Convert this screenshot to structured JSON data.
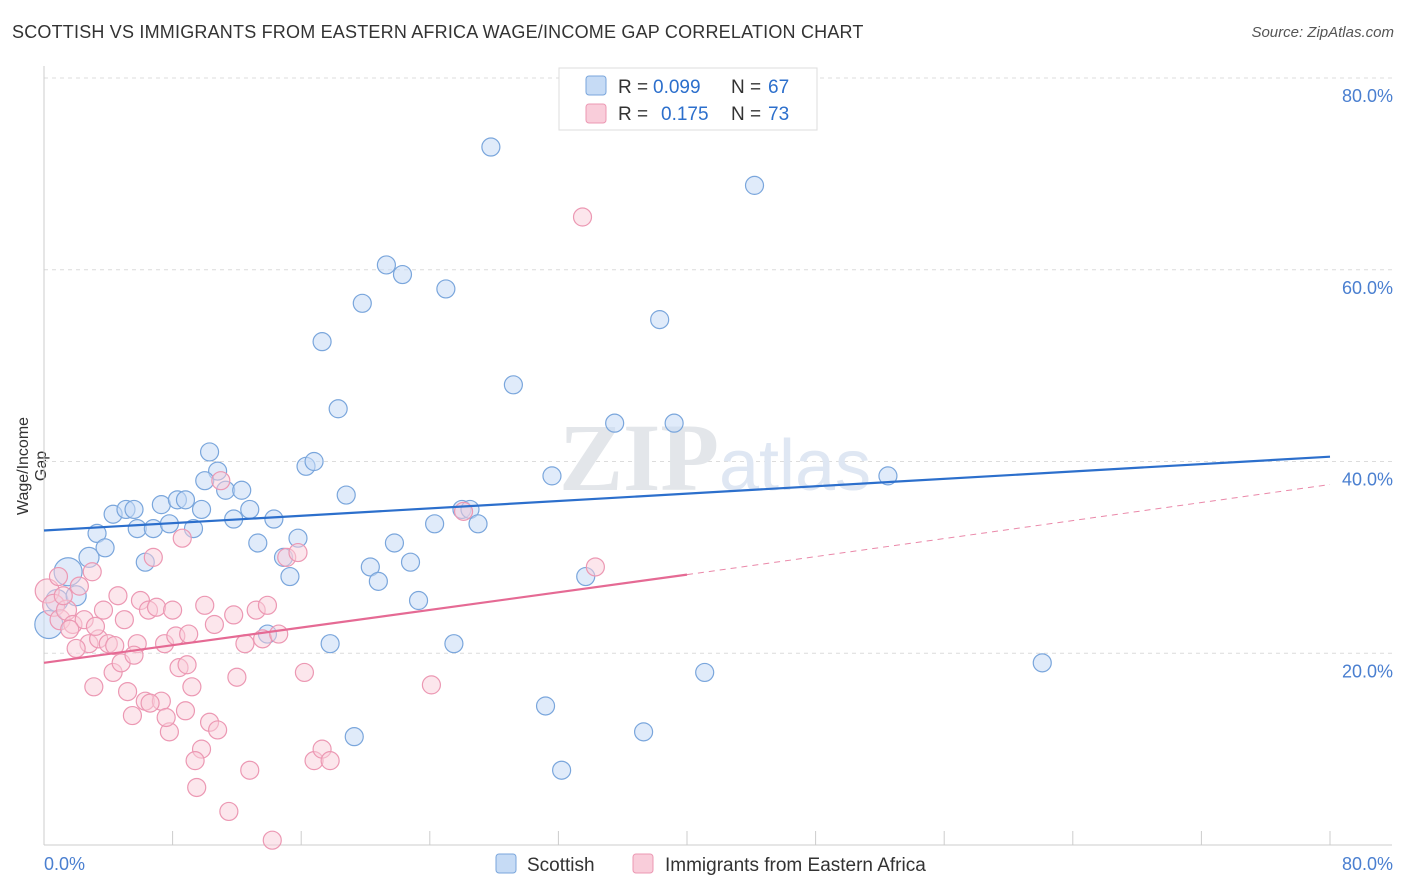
{
  "chart_data": {
    "type": "scatter",
    "title": "SCOTTISH VS IMMIGRANTS FROM EASTERN AFRICA WAGE/INCOME GAP CORRELATION CHART",
    "source": "Source: ZipAtlas.com",
    "xlabel": "",
    "ylabel": "Wage/Income Gap",
    "xlim": [
      0,
      80
    ],
    "ylim": [
      0,
      80
    ],
    "x_tick_labels": [
      "0.0%",
      "80.0%"
    ],
    "y_tick_labels": [
      "20.0%",
      "40.0%",
      "60.0%",
      "80.0%"
    ],
    "watermark": "ZIPatlas",
    "legend": [
      {
        "name": "Scottish",
        "r_label": "R =",
        "r_value": "0.099",
        "n_label": "N =",
        "n_value": "67"
      },
      {
        "name": "Immigrants from Eastern Africa",
        "r_label": "R =",
        "r_value": "0.175",
        "n_label": "N =",
        "n_value": "73"
      }
    ],
    "colors": {
      "scottish_fill": "#c6dbf5",
      "scottish_stroke": "#7aa6dc",
      "scottish_line": "#2c6fcc",
      "eafrica_fill": "#f9cdda",
      "eafrica_stroke": "#ec98b3",
      "eafrica_line": "#e56a94",
      "axis_text": "#4a7fd0",
      "grid": "#dcdcdc"
    },
    "series": [
      {
        "name": "Scottish",
        "trend": {
          "x": [
            0,
            80
          ],
          "y": [
            32.8,
            40.5
          ]
        },
        "points": [
          {
            "x": 0.3,
            "y": 23,
            "r": 14
          },
          {
            "x": 0.8,
            "y": 25.5,
            "r": 11
          },
          {
            "x": 1.5,
            "y": 28.5,
            "r": 14
          },
          {
            "x": 2.0,
            "y": 26,
            "r": 10
          },
          {
            "x": 2.8,
            "y": 30,
            "r": 10
          },
          {
            "x": 3.3,
            "y": 32.5,
            "r": 9
          },
          {
            "x": 3.8,
            "y": 31,
            "r": 9
          },
          {
            "x": 4.3,
            "y": 34.5,
            "r": 9
          },
          {
            "x": 5.1,
            "y": 35,
            "r": 9
          },
          {
            "x": 5.6,
            "y": 35,
            "r": 9
          },
          {
            "x": 5.8,
            "y": 33,
            "r": 9
          },
          {
            "x": 6.3,
            "y": 29.5,
            "r": 9
          },
          {
            "x": 6.8,
            "y": 33,
            "r": 9
          },
          {
            "x": 7.3,
            "y": 35.5,
            "r": 9
          },
          {
            "x": 7.8,
            "y": 33.5,
            "r": 9
          },
          {
            "x": 8.3,
            "y": 36,
            "r": 9
          },
          {
            "x": 8.8,
            "y": 36,
            "r": 9
          },
          {
            "x": 9.3,
            "y": 33,
            "r": 9
          },
          {
            "x": 9.8,
            "y": 35,
            "r": 9
          },
          {
            "x": 10.3,
            "y": 41,
            "r": 9
          },
          {
            "x": 10.8,
            "y": 39,
            "r": 9
          },
          {
            "x": 11.3,
            "y": 37,
            "r": 9
          },
          {
            "x": 11.8,
            "y": 34,
            "r": 9
          },
          {
            "x": 12.3,
            "y": 37,
            "r": 9
          },
          {
            "x": 12.8,
            "y": 35,
            "r": 9
          },
          {
            "x": 13.3,
            "y": 31.5,
            "r": 9
          },
          {
            "x": 13.9,
            "y": 22,
            "r": 9
          },
          {
            "x": 14.3,
            "y": 34,
            "r": 9
          },
          {
            "x": 14.9,
            "y": 30,
            "r": 9
          },
          {
            "x": 15.3,
            "y": 28,
            "r": 9
          },
          {
            "x": 15.8,
            "y": 32,
            "r": 9
          },
          {
            "x": 16.3,
            "y": 39.5,
            "r": 9
          },
          {
            "x": 16.8,
            "y": 40,
            "r": 9
          },
          {
            "x": 17.3,
            "y": 52.5,
            "r": 9
          },
          {
            "x": 17.8,
            "y": 21,
            "r": 9
          },
          {
            "x": 18.3,
            "y": 45.5,
            "r": 9
          },
          {
            "x": 18.8,
            "y": 36.5,
            "r": 9
          },
          {
            "x": 19.3,
            "y": 11.3,
            "r": 9
          },
          {
            "x": 19.8,
            "y": 56.5,
            "r": 9
          },
          {
            "x": 20.3,
            "y": 29,
            "r": 9
          },
          {
            "x": 20.8,
            "y": 27.5,
            "r": 9
          },
          {
            "x": 21.3,
            "y": 60.5,
            "r": 9
          },
          {
            "x": 21.8,
            "y": 31.5,
            "r": 9
          },
          {
            "x": 22.3,
            "y": 59.5,
            "r": 9
          },
          {
            "x": 22.8,
            "y": 29.5,
            "r": 9
          },
          {
            "x": 23.3,
            "y": 25.5,
            "r": 9
          },
          {
            "x": 24.3,
            "y": 33.5,
            "r": 9
          },
          {
            "x": 25.0,
            "y": 58,
            "r": 9
          },
          {
            "x": 25.5,
            "y": 21,
            "r": 9
          },
          {
            "x": 26.0,
            "y": 35,
            "r": 9
          },
          {
            "x": 26.5,
            "y": 35,
            "r": 9
          },
          {
            "x": 27.0,
            "y": 33.5,
            "r": 9
          },
          {
            "x": 27.8,
            "y": 72.8,
            "r": 9
          },
          {
            "x": 29.2,
            "y": 48,
            "r": 9
          },
          {
            "x": 31.2,
            "y": 14.5,
            "r": 9
          },
          {
            "x": 31.6,
            "y": 38.5,
            "r": 9
          },
          {
            "x": 32.2,
            "y": 7.8,
            "r": 9
          },
          {
            "x": 33.7,
            "y": 28,
            "r": 9
          },
          {
            "x": 35.5,
            "y": 44,
            "r": 9
          },
          {
            "x": 37.3,
            "y": 11.8,
            "r": 9
          },
          {
            "x": 38.3,
            "y": 54.8,
            "r": 9
          },
          {
            "x": 39.2,
            "y": 44,
            "r": 9
          },
          {
            "x": 41.1,
            "y": 18,
            "r": 9
          },
          {
            "x": 44.2,
            "y": 68.8,
            "r": 9
          },
          {
            "x": 52.5,
            "y": 38.5,
            "r": 9
          },
          {
            "x": 62.1,
            "y": 19,
            "r": 9
          },
          {
            "x": 10.0,
            "y": 38,
            "r": 9
          }
        ]
      },
      {
        "name": "Immigrants from Eastern Africa",
        "trend": {
          "x": [
            0,
            40
          ],
          "y": [
            19,
            28.2
          ]
        },
        "trend_extension": {
          "x": [
            40,
            80
          ],
          "y": [
            28.2,
            37.6
          ]
        },
        "points": [
          {
            "x": 0.2,
            "y": 26.5,
            "r": 12
          },
          {
            "x": 0.6,
            "y": 25,
            "r": 11
          },
          {
            "x": 1.0,
            "y": 23.5,
            "r": 10
          },
          {
            "x": 1.4,
            "y": 24.5,
            "r": 10
          },
          {
            "x": 1.8,
            "y": 23,
            "r": 9
          },
          {
            "x": 2.2,
            "y": 27,
            "r": 9
          },
          {
            "x": 2.5,
            "y": 23.5,
            "r": 9
          },
          {
            "x": 2.8,
            "y": 21,
            "r": 9
          },
          {
            "x": 3.0,
            "y": 28.5,
            "r": 9
          },
          {
            "x": 3.1,
            "y": 16.5,
            "r": 9
          },
          {
            "x": 3.4,
            "y": 21.5,
            "r": 9
          },
          {
            "x": 3.7,
            "y": 24.5,
            "r": 9
          },
          {
            "x": 4.0,
            "y": 21,
            "r": 9
          },
          {
            "x": 4.3,
            "y": 18,
            "r": 9
          },
          {
            "x": 4.6,
            "y": 26,
            "r": 9
          },
          {
            "x": 4.8,
            "y": 19,
            "r": 9
          },
          {
            "x": 5.0,
            "y": 23.5,
            "r": 9
          },
          {
            "x": 5.2,
            "y": 16,
            "r": 9
          },
          {
            "x": 5.5,
            "y": 13.5,
            "r": 9
          },
          {
            "x": 5.8,
            "y": 21,
            "r": 9
          },
          {
            "x": 6.0,
            "y": 25.5,
            "r": 9
          },
          {
            "x": 6.3,
            "y": 15,
            "r": 9
          },
          {
            "x": 6.5,
            "y": 24.5,
            "r": 9
          },
          {
            "x": 6.8,
            "y": 30,
            "r": 9
          },
          {
            "x": 7.0,
            "y": 24.8,
            "r": 9
          },
          {
            "x": 7.3,
            "y": 15,
            "r": 9
          },
          {
            "x": 7.5,
            "y": 21,
            "r": 9
          },
          {
            "x": 7.8,
            "y": 11.8,
            "r": 9
          },
          {
            "x": 8.0,
            "y": 24.5,
            "r": 9
          },
          {
            "x": 8.2,
            "y": 21.8,
            "r": 9
          },
          {
            "x": 8.4,
            "y": 18.5,
            "r": 9
          },
          {
            "x": 8.6,
            "y": 32,
            "r": 9
          },
          {
            "x": 8.8,
            "y": 14,
            "r": 9
          },
          {
            "x": 9.0,
            "y": 22,
            "r": 9
          },
          {
            "x": 9.2,
            "y": 16.5,
            "r": 9
          },
          {
            "x": 9.5,
            "y": 6,
            "r": 9
          },
          {
            "x": 9.8,
            "y": 10,
            "r": 9
          },
          {
            "x": 10.0,
            "y": 25,
            "r": 9
          },
          {
            "x": 10.3,
            "y": 12.8,
            "r": 9
          },
          {
            "x": 10.6,
            "y": 23,
            "r": 9
          },
          {
            "x": 11.0,
            "y": 38,
            "r": 9
          },
          {
            "x": 11.5,
            "y": 3.5,
            "r": 9
          },
          {
            "x": 12.0,
            "y": 17.5,
            "r": 9
          },
          {
            "x": 12.8,
            "y": 7.8,
            "r": 9
          },
          {
            "x": 13.2,
            "y": 24.5,
            "r": 9
          },
          {
            "x": 13.9,
            "y": 25,
            "r": 9
          },
          {
            "x": 14.2,
            "y": 0.5,
            "r": 9
          },
          {
            "x": 15.1,
            "y": 30,
            "r": 9
          },
          {
            "x": 15.8,
            "y": 30.5,
            "r": 9
          },
          {
            "x": 16.8,
            "y": 8.8,
            "r": 9
          },
          {
            "x": 17.3,
            "y": 10,
            "r": 9
          },
          {
            "x": 17.8,
            "y": 8.8,
            "r": 9
          },
          {
            "x": 24.1,
            "y": 16.7,
            "r": 9
          },
          {
            "x": 26.1,
            "y": 34.8,
            "r": 9
          },
          {
            "x": 33.5,
            "y": 65.5,
            "r": 9
          },
          {
            "x": 34.3,
            "y": 29,
            "r": 9
          },
          {
            "x": 1.2,
            "y": 26,
            "r": 9
          },
          {
            "x": 2.0,
            "y": 20.5,
            "r": 9
          },
          {
            "x": 3.2,
            "y": 22.8,
            "r": 9
          },
          {
            "x": 4.4,
            "y": 20.8,
            "r": 9
          },
          {
            "x": 5.6,
            "y": 19.8,
            "r": 9
          },
          {
            "x": 6.6,
            "y": 14.8,
            "r": 9
          },
          {
            "x": 7.6,
            "y": 13.3,
            "r": 9
          },
          {
            "x": 8.9,
            "y": 18.8,
            "r": 9
          },
          {
            "x": 9.4,
            "y": 8.8,
            "r": 9
          },
          {
            "x": 10.8,
            "y": 12,
            "r": 9
          },
          {
            "x": 11.8,
            "y": 24,
            "r": 9
          },
          {
            "x": 12.5,
            "y": 21,
            "r": 9
          },
          {
            "x": 13.6,
            "y": 21.5,
            "r": 9
          },
          {
            "x": 14.6,
            "y": 22,
            "r": 9
          },
          {
            "x": 16.2,
            "y": 18,
            "r": 9
          },
          {
            "x": 0.9,
            "y": 28,
            "r": 9
          },
          {
            "x": 1.6,
            "y": 22.5,
            "r": 9
          }
        ]
      }
    ]
  }
}
